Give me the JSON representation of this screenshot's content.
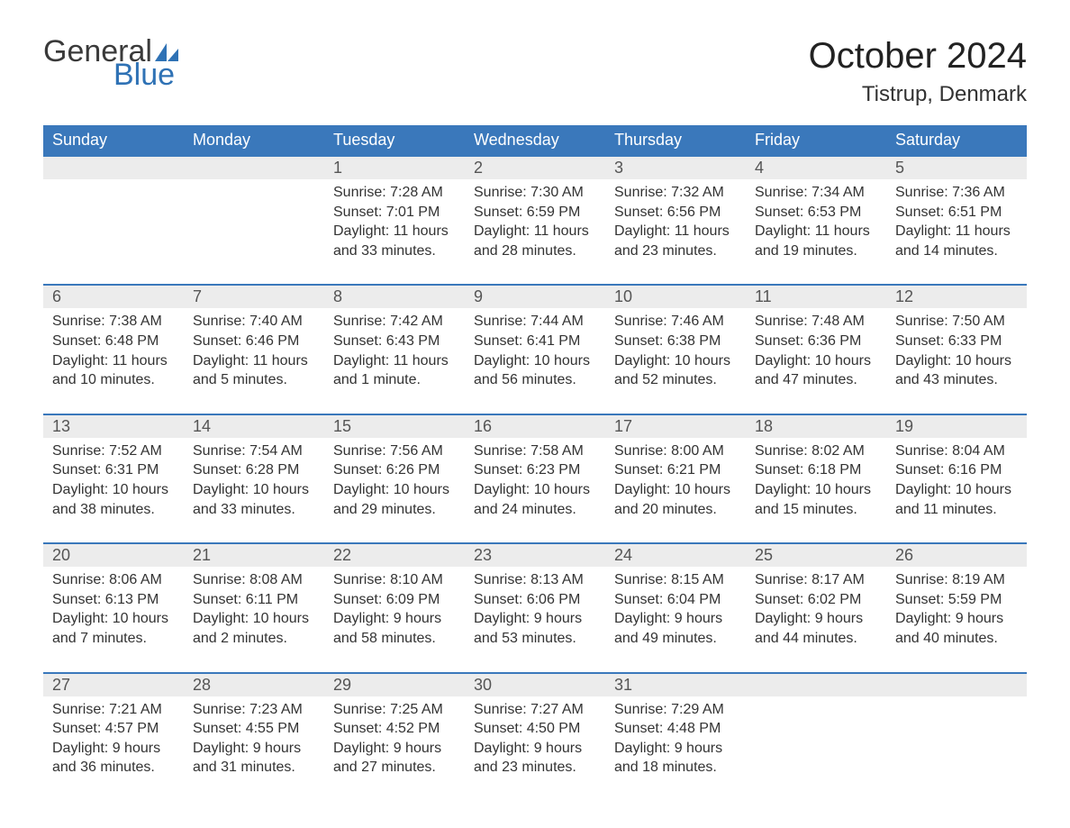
{
  "brand": {
    "general": "General",
    "blue": "Blue",
    "sail_color": "#2f72b5"
  },
  "title": "October 2024",
  "location": "Tistrup, Denmark",
  "colors": {
    "header_bg": "#3a78bb",
    "header_text": "#ffffff",
    "daynum_bg": "#ececec",
    "daynum_border": "#3a78bb",
    "body_text": "#333333",
    "background": "#ffffff"
  },
  "weekdays": [
    "Sunday",
    "Monday",
    "Tuesday",
    "Wednesday",
    "Thursday",
    "Friday",
    "Saturday"
  ],
  "weeks": [
    [
      null,
      null,
      {
        "n": "1",
        "sr": "Sunrise: 7:28 AM",
        "ss": "Sunset: 7:01 PM",
        "d1": "Daylight: 11 hours",
        "d2": "and 33 minutes."
      },
      {
        "n": "2",
        "sr": "Sunrise: 7:30 AM",
        "ss": "Sunset: 6:59 PM",
        "d1": "Daylight: 11 hours",
        "d2": "and 28 minutes."
      },
      {
        "n": "3",
        "sr": "Sunrise: 7:32 AM",
        "ss": "Sunset: 6:56 PM",
        "d1": "Daylight: 11 hours",
        "d2": "and 23 minutes."
      },
      {
        "n": "4",
        "sr": "Sunrise: 7:34 AM",
        "ss": "Sunset: 6:53 PM",
        "d1": "Daylight: 11 hours",
        "d2": "and 19 minutes."
      },
      {
        "n": "5",
        "sr": "Sunrise: 7:36 AM",
        "ss": "Sunset: 6:51 PM",
        "d1": "Daylight: 11 hours",
        "d2": "and 14 minutes."
      }
    ],
    [
      {
        "n": "6",
        "sr": "Sunrise: 7:38 AM",
        "ss": "Sunset: 6:48 PM",
        "d1": "Daylight: 11 hours",
        "d2": "and 10 minutes."
      },
      {
        "n": "7",
        "sr": "Sunrise: 7:40 AM",
        "ss": "Sunset: 6:46 PM",
        "d1": "Daylight: 11 hours",
        "d2": "and 5 minutes."
      },
      {
        "n": "8",
        "sr": "Sunrise: 7:42 AM",
        "ss": "Sunset: 6:43 PM",
        "d1": "Daylight: 11 hours",
        "d2": "and 1 minute."
      },
      {
        "n": "9",
        "sr": "Sunrise: 7:44 AM",
        "ss": "Sunset: 6:41 PM",
        "d1": "Daylight: 10 hours",
        "d2": "and 56 minutes."
      },
      {
        "n": "10",
        "sr": "Sunrise: 7:46 AM",
        "ss": "Sunset: 6:38 PM",
        "d1": "Daylight: 10 hours",
        "d2": "and 52 minutes."
      },
      {
        "n": "11",
        "sr": "Sunrise: 7:48 AM",
        "ss": "Sunset: 6:36 PM",
        "d1": "Daylight: 10 hours",
        "d2": "and 47 minutes."
      },
      {
        "n": "12",
        "sr": "Sunrise: 7:50 AM",
        "ss": "Sunset: 6:33 PM",
        "d1": "Daylight: 10 hours",
        "d2": "and 43 minutes."
      }
    ],
    [
      {
        "n": "13",
        "sr": "Sunrise: 7:52 AM",
        "ss": "Sunset: 6:31 PM",
        "d1": "Daylight: 10 hours",
        "d2": "and 38 minutes."
      },
      {
        "n": "14",
        "sr": "Sunrise: 7:54 AM",
        "ss": "Sunset: 6:28 PM",
        "d1": "Daylight: 10 hours",
        "d2": "and 33 minutes."
      },
      {
        "n": "15",
        "sr": "Sunrise: 7:56 AM",
        "ss": "Sunset: 6:26 PM",
        "d1": "Daylight: 10 hours",
        "d2": "and 29 minutes."
      },
      {
        "n": "16",
        "sr": "Sunrise: 7:58 AM",
        "ss": "Sunset: 6:23 PM",
        "d1": "Daylight: 10 hours",
        "d2": "and 24 minutes."
      },
      {
        "n": "17",
        "sr": "Sunrise: 8:00 AM",
        "ss": "Sunset: 6:21 PM",
        "d1": "Daylight: 10 hours",
        "d2": "and 20 minutes."
      },
      {
        "n": "18",
        "sr": "Sunrise: 8:02 AM",
        "ss": "Sunset: 6:18 PM",
        "d1": "Daylight: 10 hours",
        "d2": "and 15 minutes."
      },
      {
        "n": "19",
        "sr": "Sunrise: 8:04 AM",
        "ss": "Sunset: 6:16 PM",
        "d1": "Daylight: 10 hours",
        "d2": "and 11 minutes."
      }
    ],
    [
      {
        "n": "20",
        "sr": "Sunrise: 8:06 AM",
        "ss": "Sunset: 6:13 PM",
        "d1": "Daylight: 10 hours",
        "d2": "and 7 minutes."
      },
      {
        "n": "21",
        "sr": "Sunrise: 8:08 AM",
        "ss": "Sunset: 6:11 PM",
        "d1": "Daylight: 10 hours",
        "d2": "and 2 minutes."
      },
      {
        "n": "22",
        "sr": "Sunrise: 8:10 AM",
        "ss": "Sunset: 6:09 PM",
        "d1": "Daylight: 9 hours",
        "d2": "and 58 minutes."
      },
      {
        "n": "23",
        "sr": "Sunrise: 8:13 AM",
        "ss": "Sunset: 6:06 PM",
        "d1": "Daylight: 9 hours",
        "d2": "and 53 minutes."
      },
      {
        "n": "24",
        "sr": "Sunrise: 8:15 AM",
        "ss": "Sunset: 6:04 PM",
        "d1": "Daylight: 9 hours",
        "d2": "and 49 minutes."
      },
      {
        "n": "25",
        "sr": "Sunrise: 8:17 AM",
        "ss": "Sunset: 6:02 PM",
        "d1": "Daylight: 9 hours",
        "d2": "and 44 minutes."
      },
      {
        "n": "26",
        "sr": "Sunrise: 8:19 AM",
        "ss": "Sunset: 5:59 PM",
        "d1": "Daylight: 9 hours",
        "d2": "and 40 minutes."
      }
    ],
    [
      {
        "n": "27",
        "sr": "Sunrise: 7:21 AM",
        "ss": "Sunset: 4:57 PM",
        "d1": "Daylight: 9 hours",
        "d2": "and 36 minutes."
      },
      {
        "n": "28",
        "sr": "Sunrise: 7:23 AM",
        "ss": "Sunset: 4:55 PM",
        "d1": "Daylight: 9 hours",
        "d2": "and 31 minutes."
      },
      {
        "n": "29",
        "sr": "Sunrise: 7:25 AM",
        "ss": "Sunset: 4:52 PM",
        "d1": "Daylight: 9 hours",
        "d2": "and 27 minutes."
      },
      {
        "n": "30",
        "sr": "Sunrise: 7:27 AM",
        "ss": "Sunset: 4:50 PM",
        "d1": "Daylight: 9 hours",
        "d2": "and 23 minutes."
      },
      {
        "n": "31",
        "sr": "Sunrise: 7:29 AM",
        "ss": "Sunset: 4:48 PM",
        "d1": "Daylight: 9 hours",
        "d2": "and 18 minutes."
      },
      null,
      null
    ]
  ]
}
